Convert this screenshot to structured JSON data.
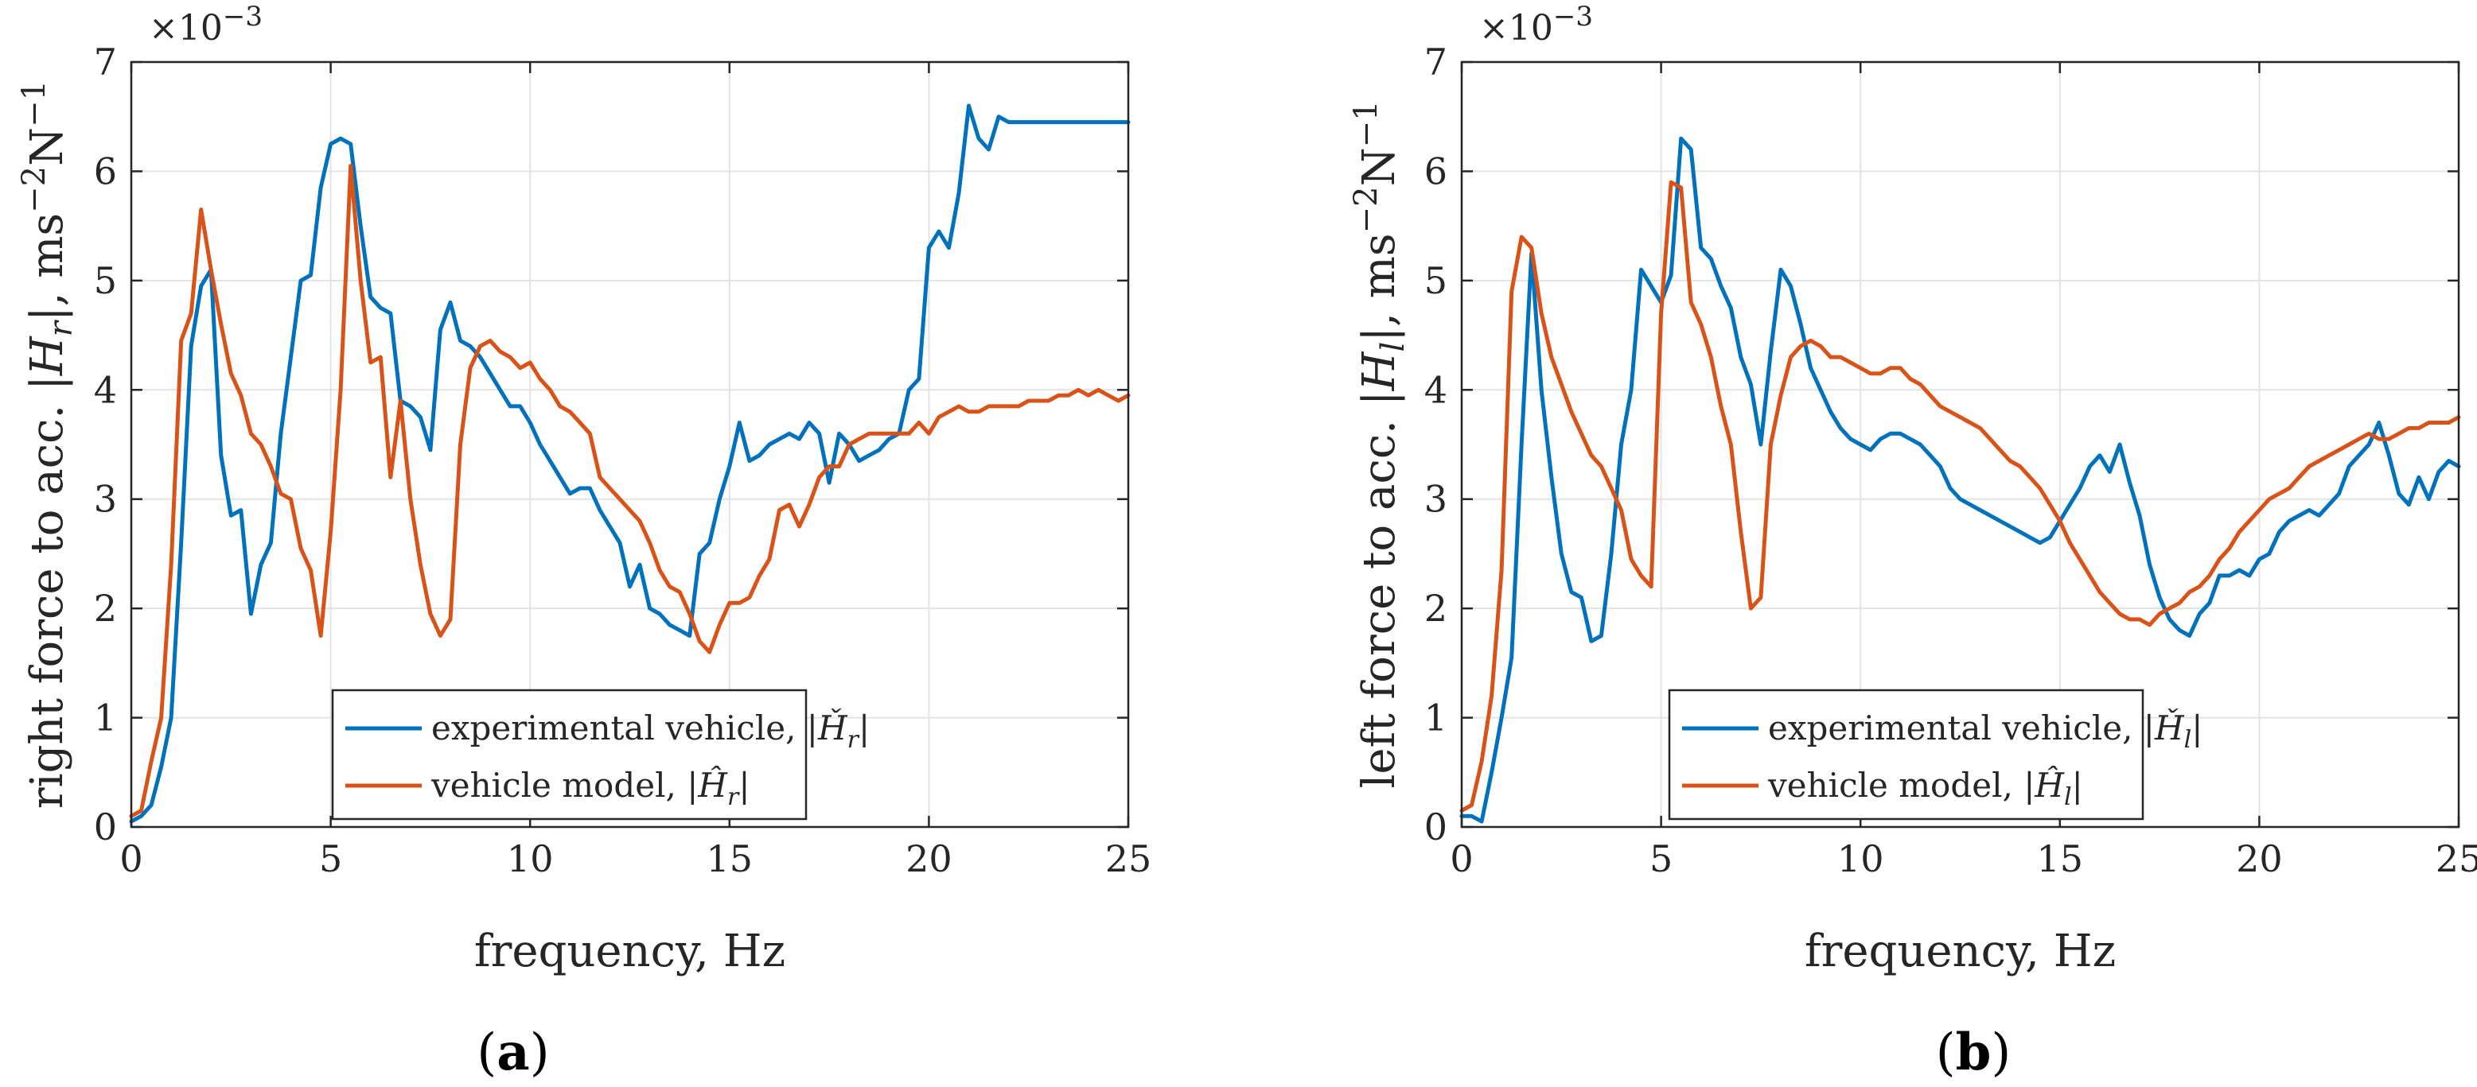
{
  "colors": {
    "experimental": "#0072BD",
    "model": "#D95319"
  },
  "chart_data": [
    {
      "type": "line",
      "panel": "(a)",
      "panel_open": "(",
      "panel_letter": "a",
      "panel_close": ")",
      "xlabel": "frequency, Hz",
      "ylabel": "right force to acc. |H_r|, ms^-2N^-1",
      "ylabel_parts": {
        "pre": "right force to acc. |",
        "H": "H",
        "sub": "r",
        "post": "|, ms",
        "sup1": "−2",
        "N": "N",
        "sup2": "−1"
      },
      "exponent": {
        "base": "×10",
        "power": "−3"
      },
      "xlim": [
        0,
        25
      ],
      "ylim": [
        0,
        7
      ],
      "xticks": [
        0,
        5,
        10,
        15,
        20,
        25
      ],
      "yticks": [
        0,
        1,
        2,
        3,
        4,
        5,
        6,
        7
      ],
      "grid": true,
      "legend_position": "lower-center",
      "series": [
        {
          "name": "experimental vehicle, |Ȟ_r|",
          "legend_parts": {
            "pre": "experimental vehicle, |",
            "H": "Ȟ",
            "sub": "r",
            "post": "|"
          },
          "color_key": "experimental",
          "x": [
            0,
            0.25,
            0.5,
            0.75,
            1.0,
            1.25,
            1.5,
            1.75,
            2.0,
            2.25,
            2.5,
            2.75,
            3.0,
            3.25,
            3.5,
            3.75,
            4.0,
            4.25,
            4.5,
            4.75,
            5.0,
            5.25,
            5.5,
            5.75,
            6.0,
            6.25,
            6.5,
            6.75,
            7.0,
            7.25,
            7.5,
            7.75,
            8.0,
            8.25,
            8.5,
            8.75,
            9.0,
            9.25,
            9.5,
            9.75,
            10.0,
            10.25,
            10.5,
            10.75,
            11.0,
            11.25,
            11.5,
            11.75,
            12.0,
            12.25,
            12.5,
            12.75,
            13.0,
            13.25,
            13.5,
            13.75,
            14.0,
            14.25,
            14.5,
            14.75,
            15.0,
            15.25,
            15.5,
            15.75,
            16.0,
            16.25,
            16.5,
            16.75,
            17.0,
            17.25,
            17.5,
            17.75,
            18.0,
            18.25,
            18.5,
            18.75,
            19.0,
            19.25,
            19.5,
            19.75,
            20.0,
            20.25,
            20.5,
            20.75,
            21.0,
            21.25,
            21.5,
            21.75,
            22.0,
            22.25,
            22.5,
            22.75,
            23.0,
            23.25,
            23.5,
            23.75,
            24.0,
            24.25,
            24.5,
            24.75,
            25.0
          ],
          "y": [
            0.05,
            0.1,
            0.2,
            0.55,
            1.0,
            2.6,
            4.4,
            4.95,
            5.1,
            3.4,
            2.85,
            2.9,
            1.95,
            2.4,
            2.6,
            3.6,
            4.3,
            5.0,
            5.05,
            5.85,
            6.25,
            6.3,
            6.25,
            5.5,
            4.85,
            4.75,
            4.7,
            3.9,
            3.85,
            3.75,
            3.45,
            4.55,
            4.8,
            4.45,
            4.4,
            4.3,
            4.15,
            4.0,
            3.85,
            3.85,
            3.7,
            3.5,
            3.35,
            3.2,
            3.05,
            3.1,
            3.1,
            2.9,
            2.75,
            2.6,
            2.2,
            2.4,
            2.0,
            1.95,
            1.85,
            1.8,
            1.75,
            2.5,
            2.6,
            3.0,
            3.3,
            3.7,
            3.35,
            3.4,
            3.5,
            3.55,
            3.6,
            3.55,
            3.7,
            3.6,
            3.15,
            3.6,
            3.5,
            3.35,
            3.4,
            3.45,
            3.55,
            3.6,
            4.0,
            4.1,
            5.3,
            5.45,
            5.3,
            5.8,
            6.6,
            6.3,
            6.2,
            6.5,
            6.45,
            6.45,
            6.45,
            6.45,
            6.45,
            6.45,
            6.45,
            6.45,
            6.45,
            6.45,
            6.45,
            6.45,
            6.45
          ]
        },
        {
          "name": "vehicle model, |Ĥ_r|",
          "legend_parts": {
            "pre": "vehicle model, |",
            "H": "Ĥ",
            "sub": "r",
            "post": "|"
          },
          "color_key": "model",
          "x": [
            0,
            0.25,
            0.5,
            0.75,
            1.0,
            1.25,
            1.5,
            1.75,
            2.0,
            2.25,
            2.5,
            2.75,
            3.0,
            3.25,
            3.5,
            3.75,
            4.0,
            4.25,
            4.5,
            4.75,
            5.0,
            5.25,
            5.5,
            5.75,
            6.0,
            6.25,
            6.5,
            6.75,
            7.0,
            7.25,
            7.5,
            7.75,
            8.0,
            8.25,
            8.5,
            8.75,
            9.0,
            9.25,
            9.5,
            9.75,
            10.0,
            10.25,
            10.5,
            10.75,
            11.0,
            11.25,
            11.5,
            11.75,
            12.0,
            12.25,
            12.5,
            12.75,
            13.0,
            13.25,
            13.5,
            13.75,
            14.0,
            14.25,
            14.5,
            14.75,
            15.0,
            15.25,
            15.5,
            15.75,
            16.0,
            16.25,
            16.5,
            16.75,
            17.0,
            17.25,
            17.5,
            17.75,
            18.0,
            18.25,
            18.5,
            18.75,
            19.0,
            19.25,
            19.5,
            19.75,
            20.0,
            20.25,
            20.5,
            20.75,
            21.0,
            21.25,
            21.5,
            21.75,
            22.0,
            22.25,
            22.5,
            22.75,
            23.0,
            23.25,
            23.5,
            23.75,
            24.0,
            24.25,
            24.5,
            24.75,
            25.0
          ],
          "y": [
            0.1,
            0.15,
            0.6,
            1.0,
            2.4,
            4.45,
            4.7,
            5.65,
            5.1,
            4.6,
            4.15,
            3.95,
            3.6,
            3.5,
            3.3,
            3.05,
            3.0,
            2.55,
            2.35,
            1.75,
            2.7,
            4.0,
            6.05,
            5.0,
            4.25,
            4.3,
            3.2,
            3.9,
            3.0,
            2.4,
            1.95,
            1.75,
            1.9,
            3.5,
            4.2,
            4.4,
            4.45,
            4.35,
            4.3,
            4.2,
            4.25,
            4.1,
            4.0,
            3.85,
            3.8,
            3.7,
            3.6,
            3.2,
            3.1,
            3.0,
            2.9,
            2.8,
            2.6,
            2.35,
            2.2,
            2.15,
            1.95,
            1.7,
            1.6,
            1.85,
            2.05,
            2.05,
            2.1,
            2.3,
            2.45,
            2.9,
            2.95,
            2.75,
            2.95,
            3.2,
            3.3,
            3.3,
            3.5,
            3.55,
            3.6,
            3.6,
            3.6,
            3.6,
            3.6,
            3.7,
            3.6,
            3.75,
            3.8,
            3.85,
            3.8,
            3.8,
            3.85,
            3.85,
            3.85,
            3.85,
            3.9,
            3.9,
            3.9,
            3.95,
            3.95,
            4.0,
            3.95,
            4.0,
            3.95,
            3.9,
            3.95
          ]
        }
      ]
    },
    {
      "type": "line",
      "panel": "(b)",
      "panel_open": "(",
      "panel_letter": "b",
      "panel_close": ")",
      "xlabel": "frequency, Hz",
      "ylabel": "left force to acc. |H_l|, ms^-2N^-1",
      "ylabel_parts": {
        "pre": "left force to acc. |",
        "H": "H",
        "sub": "l",
        "post": "|, ms",
        "sup1": "−2",
        "N": "N",
        "sup2": "−1"
      },
      "exponent": {
        "base": "×10",
        "power": "−3"
      },
      "xlim": [
        0,
        25
      ],
      "ylim": [
        0,
        7
      ],
      "xticks": [
        0,
        5,
        10,
        15,
        20,
        25
      ],
      "yticks": [
        0,
        1,
        2,
        3,
        4,
        5,
        6,
        7
      ],
      "grid": true,
      "legend_position": "lower-center",
      "series": [
        {
          "name": "experimental vehicle, |Ȟ_l|",
          "legend_parts": {
            "pre": "experimental vehicle, |",
            "H": "Ȟ",
            "sub": "l",
            "post": "|"
          },
          "color_key": "experimental",
          "x": [
            0,
            0.25,
            0.5,
            0.75,
            1.0,
            1.25,
            1.5,
            1.75,
            2.0,
            2.25,
            2.5,
            2.75,
            3.0,
            3.25,
            3.5,
            3.75,
            4.0,
            4.25,
            4.5,
            4.75,
            5.0,
            5.25,
            5.5,
            5.75,
            6.0,
            6.25,
            6.5,
            6.75,
            7.0,
            7.25,
            7.5,
            7.75,
            8.0,
            8.25,
            8.5,
            8.75,
            9.0,
            9.25,
            9.5,
            9.75,
            10.0,
            10.25,
            10.5,
            10.75,
            11.0,
            11.25,
            11.5,
            11.75,
            12.0,
            12.25,
            12.5,
            12.75,
            13.0,
            13.25,
            13.5,
            13.75,
            14.0,
            14.25,
            14.5,
            14.75,
            15.0,
            15.25,
            15.5,
            15.75,
            16.0,
            16.25,
            16.5,
            16.75,
            17.0,
            17.25,
            17.5,
            17.75,
            18.0,
            18.25,
            18.5,
            18.75,
            19.0,
            19.25,
            19.5,
            19.75,
            20.0,
            20.25,
            20.5,
            20.75,
            21.0,
            21.25,
            21.5,
            21.75,
            22.0,
            22.25,
            22.5,
            22.75,
            23.0,
            23.25,
            23.5,
            23.75,
            24.0,
            24.25,
            24.5,
            24.75,
            25.0
          ],
          "y": [
            0.1,
            0.1,
            0.05,
            0.5,
            1.0,
            1.55,
            3.5,
            5.25,
            4.0,
            3.2,
            2.5,
            2.15,
            2.1,
            1.7,
            1.75,
            2.5,
            3.5,
            4.0,
            5.1,
            4.95,
            4.8,
            5.05,
            6.3,
            6.2,
            5.3,
            5.2,
            4.95,
            4.75,
            4.3,
            4.05,
            3.5,
            4.35,
            5.1,
            4.95,
            4.6,
            4.2,
            4.0,
            3.8,
            3.65,
            3.55,
            3.5,
            3.45,
            3.55,
            3.6,
            3.6,
            3.55,
            3.5,
            3.4,
            3.3,
            3.1,
            3.0,
            2.95,
            2.9,
            2.85,
            2.8,
            2.75,
            2.7,
            2.65,
            2.6,
            2.65,
            2.8,
            2.95,
            3.1,
            3.3,
            3.4,
            3.25,
            3.5,
            3.15,
            2.85,
            2.4,
            2.1,
            1.9,
            1.8,
            1.75,
            1.95,
            2.05,
            2.3,
            2.3,
            2.35,
            2.3,
            2.45,
            2.5,
            2.7,
            2.8,
            2.85,
            2.9,
            2.85,
            2.95,
            3.05,
            3.3,
            3.4,
            3.5,
            3.7,
            3.4,
            3.05,
            2.95,
            3.2,
            3.0,
            3.25,
            3.35,
            3.3
          ]
        },
        {
          "name": "vehicle model, |Ĥ_l|",
          "legend_parts": {
            "pre": "vehicle model, |",
            "H": "Ĥ",
            "sub": "l",
            "post": "|"
          },
          "color_key": "model",
          "x": [
            0,
            0.25,
            0.5,
            0.75,
            1.0,
            1.25,
            1.5,
            1.75,
            2.0,
            2.25,
            2.5,
            2.75,
            3.0,
            3.25,
            3.5,
            3.75,
            4.0,
            4.25,
            4.5,
            4.75,
            5.0,
            5.25,
            5.5,
            5.75,
            6.0,
            6.25,
            6.5,
            6.75,
            7.0,
            7.25,
            7.5,
            7.75,
            8.0,
            8.25,
            8.5,
            8.75,
            9.0,
            9.25,
            9.5,
            9.75,
            10.0,
            10.25,
            10.5,
            10.75,
            11.0,
            11.25,
            11.5,
            11.75,
            12.0,
            12.25,
            12.5,
            12.75,
            13.0,
            13.25,
            13.5,
            13.75,
            14.0,
            14.25,
            14.5,
            14.75,
            15.0,
            15.25,
            15.5,
            15.75,
            16.0,
            16.25,
            16.5,
            16.75,
            17.0,
            17.25,
            17.5,
            17.75,
            18.0,
            18.25,
            18.5,
            18.75,
            19.0,
            19.25,
            19.5,
            19.75,
            20.0,
            20.25,
            20.5,
            20.75,
            21.0,
            21.25,
            21.5,
            21.75,
            22.0,
            22.25,
            22.5,
            22.75,
            23.0,
            23.25,
            23.5,
            23.75,
            24.0,
            24.25,
            24.5,
            24.75,
            25.0
          ],
          "y": [
            0.15,
            0.2,
            0.6,
            1.2,
            2.35,
            4.9,
            5.4,
            5.3,
            4.7,
            4.3,
            4.05,
            3.8,
            3.6,
            3.4,
            3.3,
            3.1,
            2.9,
            2.45,
            2.3,
            2.2,
            4.7,
            5.9,
            5.85,
            4.8,
            4.6,
            4.3,
            3.85,
            3.5,
            2.7,
            2.0,
            2.1,
            3.5,
            3.95,
            4.3,
            4.4,
            4.45,
            4.4,
            4.3,
            4.3,
            4.25,
            4.2,
            4.15,
            4.15,
            4.2,
            4.2,
            4.1,
            4.05,
            3.95,
            3.85,
            3.8,
            3.75,
            3.7,
            3.65,
            3.55,
            3.45,
            3.35,
            3.3,
            3.2,
            3.1,
            2.95,
            2.8,
            2.6,
            2.45,
            2.3,
            2.15,
            2.05,
            1.95,
            1.9,
            1.9,
            1.85,
            1.95,
            2.0,
            2.05,
            2.15,
            2.2,
            2.3,
            2.45,
            2.55,
            2.7,
            2.8,
            2.9,
            3.0,
            3.05,
            3.1,
            3.2,
            3.3,
            3.35,
            3.4,
            3.45,
            3.5,
            3.55,
            3.6,
            3.55,
            3.55,
            3.6,
            3.65,
            3.65,
            3.7,
            3.7,
            3.7,
            3.75
          ]
        }
      ]
    }
  ]
}
